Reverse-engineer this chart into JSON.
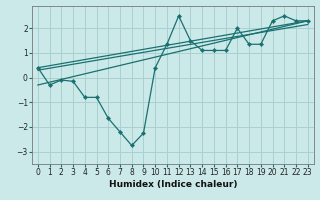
{
  "xlabel": "Humidex (Indice chaleur)",
  "ylabel": "",
  "bg_color": "#cce9e9",
  "grid_color": "#aad0d0",
  "line_color": "#1a7070",
  "xlim": [
    -0.5,
    23.5
  ],
  "ylim": [
    -3.5,
    2.9
  ],
  "yticks": [
    -3,
    -2,
    -1,
    0,
    1,
    2
  ],
  "xticks": [
    0,
    1,
    2,
    3,
    4,
    5,
    6,
    7,
    8,
    9,
    10,
    11,
    12,
    13,
    14,
    15,
    16,
    17,
    18,
    19,
    20,
    21,
    22,
    23
  ],
  "zigzag": {
    "x": [
      0,
      1,
      2,
      3,
      4,
      5,
      6,
      7,
      8,
      9,
      10,
      11,
      12,
      13,
      14,
      15,
      16,
      17,
      18,
      19,
      20,
      21,
      22,
      23
    ],
    "y": [
      0.4,
      -0.3,
      -0.1,
      -0.15,
      -0.8,
      -0.8,
      -1.65,
      -2.2,
      -2.75,
      -2.25,
      0.4,
      1.35,
      2.5,
      1.5,
      1.1,
      1.1,
      1.1,
      2.0,
      1.35,
      1.35,
      2.3,
      2.5,
      2.3,
      2.3
    ]
  },
  "linear_lines": [
    {
      "x": [
        0,
        23
      ],
      "y": [
        0.4,
        2.3
      ]
    },
    {
      "x": [
        0,
        23
      ],
      "y": [
        0.3,
        2.15
      ]
    },
    {
      "x": [
        0,
        23
      ],
      "y": [
        -0.3,
        2.3
      ]
    }
  ]
}
